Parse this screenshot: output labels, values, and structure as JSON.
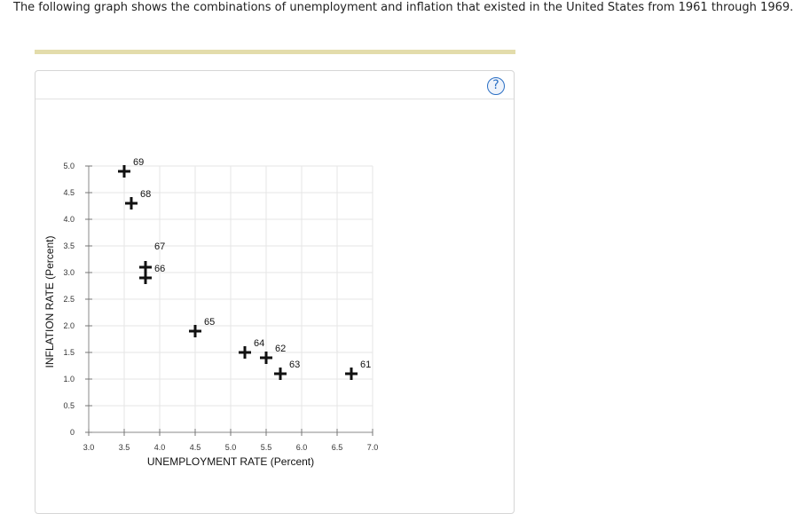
{
  "question": {
    "text": "The following graph shows the combinations of unemployment and inflation that existed in the United States from 1961 through 1969."
  },
  "help": {
    "label": "?"
  },
  "colors": {
    "accent_bar": "#e3dcab",
    "grid": "#e6e6e6",
    "marker": "#111111",
    "help": "#2a6fc4"
  },
  "chart_data": {
    "type": "scatter",
    "title": "",
    "xlabel": "UNEMPLOYMENT RATE (Percent)",
    "ylabel": "INFLATION RATE (Percent)",
    "xlim": [
      3.0,
      7.0
    ],
    "ylim": [
      0,
      5.0
    ],
    "xticks": [
      "3.0",
      "3.5",
      "4.0",
      "4.5",
      "5.0",
      "5.5",
      "6.0",
      "6.5",
      "7.0"
    ],
    "yticks": [
      "0",
      "0.5",
      "1.0",
      "1.5",
      "2.0",
      "2.5",
      "3.0",
      "3.5",
      "4.0",
      "4.5",
      "5.0"
    ],
    "grid": true,
    "marker": "plus",
    "points": [
      {
        "label": "61",
        "x": 6.7,
        "y": 1.1
      },
      {
        "label": "62",
        "x": 5.5,
        "y": 1.4
      },
      {
        "label": "63",
        "x": 5.7,
        "y": 1.1
      },
      {
        "label": "64",
        "x": 5.2,
        "y": 1.5
      },
      {
        "label": "65",
        "x": 4.5,
        "y": 1.9
      },
      {
        "label": "66",
        "x": 3.8,
        "y": 2.9
      },
      {
        "label": "67",
        "x": 3.8,
        "y": 3.1
      },
      {
        "label": "68",
        "x": 3.6,
        "y": 4.3
      },
      {
        "label": "69",
        "x": 3.5,
        "y": 4.9
      }
    ]
  }
}
